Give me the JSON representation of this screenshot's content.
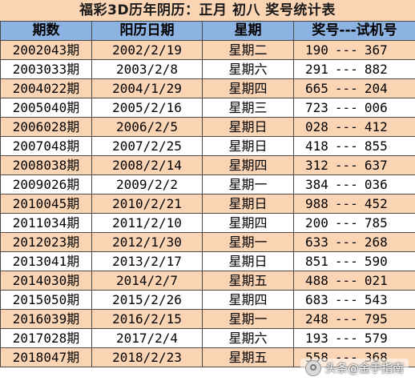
{
  "title": "福彩3D历年阴历：正月 初八 奖号统计表",
  "headers": {
    "issue": "期数",
    "date": "阳历日期",
    "weekday": "星期",
    "numbers": "奖号---试机号"
  },
  "separator": "---",
  "rows": [
    {
      "issue": "2002043期",
      "date": "2002/2/19",
      "weekday": "星期二",
      "draw": "190",
      "test": "367"
    },
    {
      "issue": "2003033期",
      "date": "2003/2/8",
      "weekday": "星期六",
      "draw": "291",
      "test": "882"
    },
    {
      "issue": "2004022期",
      "date": "2004/1/29",
      "weekday": "星期四",
      "draw": "665",
      "test": "204"
    },
    {
      "issue": "2005040期",
      "date": "2005/2/16",
      "weekday": "星期三",
      "draw": "723",
      "test": "006"
    },
    {
      "issue": "2006028期",
      "date": "2006/2/5",
      "weekday": "星期日",
      "draw": "028",
      "test": "412"
    },
    {
      "issue": "2007048期",
      "date": "2007/2/25",
      "weekday": "星期日",
      "draw": "418",
      "test": "855"
    },
    {
      "issue": "2008038期",
      "date": "2008/2/14",
      "weekday": "星期四",
      "draw": "312",
      "test": "637"
    },
    {
      "issue": "2009026期",
      "date": "2009/2/2",
      "weekday": "星期一",
      "draw": "384",
      "test": "036"
    },
    {
      "issue": "2010045期",
      "date": "2010/2/21",
      "weekday": "星期日",
      "draw": "988",
      "test": "452"
    },
    {
      "issue": "2011034期",
      "date": "2011/2/10",
      "weekday": "星期四",
      "draw": "200",
      "test": "785"
    },
    {
      "issue": "2012023期",
      "date": "2012/1/30",
      "weekday": "星期一",
      "draw": "633",
      "test": "268"
    },
    {
      "issue": "2013041期",
      "date": "2013/2/17",
      "weekday": "星期日",
      "draw": "851",
      "test": "590"
    },
    {
      "issue": "2014030期",
      "date": "2014/2/7",
      "weekday": "星期五",
      "draw": "488",
      "test": "021"
    },
    {
      "issue": "2015050期",
      "date": "2015/2/26",
      "weekday": "星期四",
      "draw": "683",
      "test": "543"
    },
    {
      "issue": "2016039期",
      "date": "2016/2/15",
      "weekday": "星期一",
      "draw": "248",
      "test": "795"
    },
    {
      "issue": "2017028期",
      "date": "2017/2/4",
      "weekday": "星期六",
      "draw": "193",
      "test": "579"
    },
    {
      "issue": "2018047期",
      "date": "2018/2/23",
      "weekday": "星期五",
      "draw": "558",
      "test": "368"
    }
  ],
  "colors": {
    "header_bg": "#8db3e2",
    "row_odd_bg": "#fbd4b4",
    "row_even_bg": "#ffffff",
    "title_bg": "#fbd4b4"
  },
  "watermark": {
    "text": "头条@金手指南",
    "icon": "toutiao-logo-icon"
  }
}
